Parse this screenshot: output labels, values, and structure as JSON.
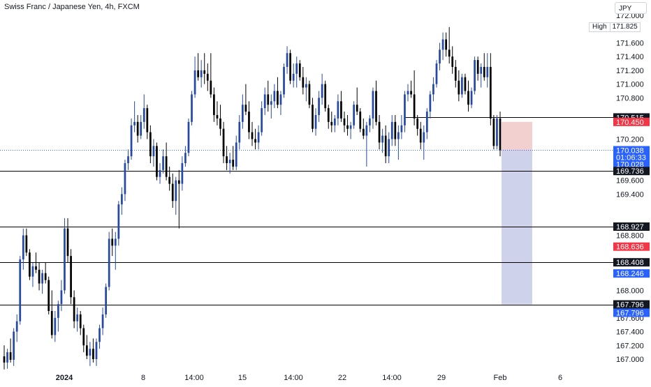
{
  "title": "Swiss Franc / Japanese Yen, 4h, FXCM",
  "currency": "JPY",
  "high_marker": {
    "label": "High",
    "value": "171.825"
  },
  "colors": {
    "bull": "#2449a8",
    "bear": "#000000",
    "stop_zone": "#f0c8c8",
    "target_zone": "#c5cbe8",
    "blue_tag": "#2962ff",
    "red_tag": "#f23645",
    "dark_tag": "#131722",
    "grid_text": "#131722"
  },
  "chart_data": {
    "type": "candlestick",
    "price_axis": {
      "ticks": [
        "172.000",
        "171.600",
        "171.400",
        "171.200",
        "171.000",
        "170.800",
        "170.200",
        "169.600",
        "169.400",
        "168.800",
        "168.000",
        "167.600",
        "167.400",
        "167.200",
        "167.000"
      ],
      "ylim": [
        166.9,
        172.0
      ]
    },
    "time_axis": {
      "labels": [
        "2024",
        "8",
        "14:00",
        "15",
        "14:00",
        "22",
        "14:00",
        "29",
        "Feb",
        "6"
      ]
    },
    "horizontal_levels": [
      "170.515",
      "169.736",
      "168.927",
      "168.408",
      "167.796"
    ],
    "price_tags": [
      {
        "value": "170.515",
        "style": "dark"
      },
      {
        "value": "170.450",
        "style": "red"
      },
      {
        "value": "170.038",
        "style": "blue"
      },
      {
        "value": "01:06:33",
        "style": "blue"
      },
      {
        "value": "170.028",
        "style": "blue"
      },
      {
        "value": "169.736",
        "style": "dark"
      },
      {
        "value": "168.927",
        "style": "dark"
      },
      {
        "value": "168.636",
        "style": "red"
      },
      {
        "value": "168.408",
        "style": "dark"
      },
      {
        "value": "168.246",
        "style": "blue"
      },
      {
        "value": "167.796",
        "style": "dark"
      },
      {
        "value": "167.796",
        "style": "blue"
      }
    ],
    "position": {
      "type": "short",
      "entry": 170.038,
      "stop": 170.45,
      "target": 167.796
    },
    "series": [
      {
        "o": 167.04,
        "h": 167.2,
        "l": 166.85,
        "c": 166.95
      },
      {
        "o": 166.95,
        "h": 167.15,
        "l": 166.86,
        "c": 167.1
      },
      {
        "o": 167.1,
        "h": 167.3,
        "l": 166.95,
        "c": 166.99
      },
      {
        "o": 166.99,
        "h": 167.45,
        "l": 166.9,
        "c": 167.4
      },
      {
        "o": 167.4,
        "h": 167.65,
        "l": 167.25,
        "c": 167.55
      },
      {
        "o": 167.55,
        "h": 168.5,
        "l": 167.5,
        "c": 168.45
      },
      {
        "o": 168.45,
        "h": 168.9,
        "l": 168.3,
        "c": 168.8
      },
      {
        "o": 168.8,
        "h": 168.9,
        "l": 168.5,
        "c": 168.55
      },
      {
        "o": 168.55,
        "h": 168.6,
        "l": 168.15,
        "c": 168.2
      },
      {
        "o": 168.2,
        "h": 168.4,
        "l": 168.05,
        "c": 168.35
      },
      {
        "o": 168.35,
        "h": 168.55,
        "l": 168.25,
        "c": 168.3
      },
      {
        "o": 168.3,
        "h": 168.4,
        "l": 168.0,
        "c": 168.1
      },
      {
        "o": 168.1,
        "h": 168.3,
        "l": 167.95,
        "c": 168.25
      },
      {
        "o": 168.25,
        "h": 168.4,
        "l": 168.1,
        "c": 168.15
      },
      {
        "o": 168.15,
        "h": 168.2,
        "l": 167.65,
        "c": 167.7
      },
      {
        "o": 167.7,
        "h": 168.0,
        "l": 167.3,
        "c": 167.35
      },
      {
        "o": 167.35,
        "h": 167.7,
        "l": 167.25,
        "c": 167.6
      },
      {
        "o": 167.6,
        "h": 167.85,
        "l": 167.4,
        "c": 167.8
      },
      {
        "o": 167.8,
        "h": 168.15,
        "l": 167.7,
        "c": 168.0
      },
      {
        "o": 168.0,
        "h": 169.05,
        "l": 167.95,
        "c": 168.9
      },
      {
        "o": 168.9,
        "h": 169.05,
        "l": 168.4,
        "c": 168.5
      },
      {
        "o": 168.5,
        "h": 168.6,
        "l": 167.8,
        "c": 167.9
      },
      {
        "o": 167.9,
        "h": 168.0,
        "l": 167.45,
        "c": 167.55
      },
      {
        "o": 167.55,
        "h": 167.75,
        "l": 167.4,
        "c": 167.65
      },
      {
        "o": 167.65,
        "h": 167.7,
        "l": 167.35,
        "c": 167.45
      },
      {
        "o": 167.45,
        "h": 167.5,
        "l": 167.1,
        "c": 167.2
      },
      {
        "o": 167.2,
        "h": 167.35,
        "l": 167.0,
        "c": 167.05
      },
      {
        "o": 167.05,
        "h": 167.25,
        "l": 166.9,
        "c": 167.15
      },
      {
        "o": 167.15,
        "h": 167.3,
        "l": 166.95,
        "c": 167.0
      },
      {
        "o": 167.0,
        "h": 167.3,
        "l": 166.9,
        "c": 167.25
      },
      {
        "o": 167.25,
        "h": 167.5,
        "l": 167.15,
        "c": 167.45
      },
      {
        "o": 167.45,
        "h": 167.75,
        "l": 167.35,
        "c": 167.65
      },
      {
        "o": 167.65,
        "h": 168.1,
        "l": 167.6,
        "c": 168.05
      },
      {
        "o": 168.05,
        "h": 168.85,
        "l": 168.0,
        "c": 168.75
      },
      {
        "o": 168.75,
        "h": 168.9,
        "l": 168.5,
        "c": 168.65
      },
      {
        "o": 168.65,
        "h": 168.85,
        "l": 168.3,
        "c": 168.75
      },
      {
        "o": 168.75,
        "h": 169.3,
        "l": 168.65,
        "c": 169.25
      },
      {
        "o": 169.25,
        "h": 169.5,
        "l": 169.1,
        "c": 169.4
      },
      {
        "o": 169.4,
        "h": 169.9,
        "l": 169.3,
        "c": 169.85
      },
      {
        "o": 169.85,
        "h": 170.05,
        "l": 169.75,
        "c": 169.95
      },
      {
        "o": 169.95,
        "h": 170.5,
        "l": 169.9,
        "c": 170.4
      },
      {
        "o": 170.4,
        "h": 170.75,
        "l": 170.3,
        "c": 170.45
      },
      {
        "o": 170.45,
        "h": 170.55,
        "l": 170.15,
        "c": 170.25
      },
      {
        "o": 170.25,
        "h": 170.55,
        "l": 170.2,
        "c": 170.45
      },
      {
        "o": 170.45,
        "h": 170.85,
        "l": 170.35,
        "c": 170.65
      },
      {
        "o": 170.65,
        "h": 170.7,
        "l": 170.2,
        "c": 170.3
      },
      {
        "o": 170.3,
        "h": 170.4,
        "l": 169.85,
        "c": 169.95
      },
      {
        "o": 169.95,
        "h": 170.2,
        "l": 169.8,
        "c": 170.1
      },
      {
        "o": 170.1,
        "h": 170.15,
        "l": 169.6,
        "c": 169.65
      },
      {
        "o": 169.65,
        "h": 169.85,
        "l": 169.55,
        "c": 169.75
      },
      {
        "o": 169.75,
        "h": 170.05,
        "l": 169.7,
        "c": 169.95
      },
      {
        "o": 169.95,
        "h": 170.15,
        "l": 169.6,
        "c": 169.65
      },
      {
        "o": 169.65,
        "h": 169.8,
        "l": 169.45,
        "c": 169.55
      },
      {
        "o": 169.55,
        "h": 169.7,
        "l": 169.2,
        "c": 169.3
      },
      {
        "o": 169.3,
        "h": 169.65,
        "l": 169.1,
        "c": 169.6
      },
      {
        "o": 169.6,
        "h": 169.75,
        "l": 168.9,
        "c": 169.55
      },
      {
        "o": 169.55,
        "h": 169.95,
        "l": 169.45,
        "c": 169.85
      },
      {
        "o": 169.85,
        "h": 170.1,
        "l": 169.8,
        "c": 170.0
      },
      {
        "o": 170.0,
        "h": 170.5,
        "l": 169.95,
        "c": 170.45
      },
      {
        "o": 170.45,
        "h": 170.9,
        "l": 170.4,
        "c": 170.85
      },
      {
        "o": 170.85,
        "h": 171.4,
        "l": 170.8,
        "c": 171.2
      },
      {
        "o": 171.2,
        "h": 171.45,
        "l": 171.05,
        "c": 171.1
      },
      {
        "o": 171.1,
        "h": 171.35,
        "l": 170.95,
        "c": 171.2
      },
      {
        "o": 171.2,
        "h": 171.45,
        "l": 171.0,
        "c": 171.15
      },
      {
        "o": 171.15,
        "h": 171.3,
        "l": 170.9,
        "c": 171.05
      },
      {
        "o": 171.05,
        "h": 171.45,
        "l": 170.8,
        "c": 170.85
      },
      {
        "o": 170.85,
        "h": 170.95,
        "l": 170.45,
        "c": 170.55
      },
      {
        "o": 170.55,
        "h": 170.75,
        "l": 170.4,
        "c": 170.5
      },
      {
        "o": 170.5,
        "h": 170.7,
        "l": 170.25,
        "c": 170.35
      },
      {
        "o": 170.35,
        "h": 170.45,
        "l": 169.85,
        "c": 169.95
      },
      {
        "o": 169.95,
        "h": 170.1,
        "l": 169.75,
        "c": 169.85
      },
      {
        "o": 169.85,
        "h": 170.0,
        "l": 169.7,
        "c": 169.9
      },
      {
        "o": 169.9,
        "h": 170.1,
        "l": 169.75,
        "c": 169.8
      },
      {
        "o": 169.8,
        "h": 170.25,
        "l": 169.75,
        "c": 170.15
      },
      {
        "o": 170.15,
        "h": 170.55,
        "l": 170.05,
        "c": 170.45
      },
      {
        "o": 170.45,
        "h": 170.85,
        "l": 170.35,
        "c": 170.7
      },
      {
        "o": 170.7,
        "h": 171.0,
        "l": 170.55,
        "c": 170.6
      },
      {
        "o": 170.6,
        "h": 170.75,
        "l": 170.2,
        "c": 170.3
      },
      {
        "o": 170.3,
        "h": 170.45,
        "l": 170.1,
        "c": 170.2
      },
      {
        "o": 170.2,
        "h": 170.35,
        "l": 170.05,
        "c": 170.15
      },
      {
        "o": 170.15,
        "h": 170.4,
        "l": 170.05,
        "c": 170.3
      },
      {
        "o": 170.3,
        "h": 170.75,
        "l": 170.25,
        "c": 170.65
      },
      {
        "o": 170.65,
        "h": 170.95,
        "l": 170.55,
        "c": 170.85
      },
      {
        "o": 170.85,
        "h": 171.05,
        "l": 170.6,
        "c": 170.7
      },
      {
        "o": 170.7,
        "h": 170.85,
        "l": 170.5,
        "c": 170.75
      },
      {
        "o": 170.75,
        "h": 171.0,
        "l": 170.65,
        "c": 170.9
      },
      {
        "o": 170.9,
        "h": 171.1,
        "l": 170.65,
        "c": 170.7
      },
      {
        "o": 170.7,
        "h": 170.9,
        "l": 170.55,
        "c": 170.85
      },
      {
        "o": 170.85,
        "h": 171.3,
        "l": 170.8,
        "c": 171.25
      },
      {
        "o": 171.25,
        "h": 171.55,
        "l": 171.15,
        "c": 171.45
      },
      {
        "o": 171.45,
        "h": 171.5,
        "l": 171.0,
        "c": 171.05
      },
      {
        "o": 171.05,
        "h": 171.3,
        "l": 170.95,
        "c": 171.15
      },
      {
        "o": 171.15,
        "h": 171.4,
        "l": 170.95,
        "c": 171.3
      },
      {
        "o": 171.3,
        "h": 171.35,
        "l": 171.05,
        "c": 171.1
      },
      {
        "o": 171.1,
        "h": 171.25,
        "l": 170.85,
        "c": 170.95
      },
      {
        "o": 170.95,
        "h": 171.1,
        "l": 170.75,
        "c": 171.0
      },
      {
        "o": 171.0,
        "h": 171.05,
        "l": 170.65,
        "c": 170.7
      },
      {
        "o": 170.7,
        "h": 170.8,
        "l": 170.3,
        "c": 170.35
      },
      {
        "o": 170.35,
        "h": 170.65,
        "l": 170.25,
        "c": 170.55
      },
      {
        "o": 170.55,
        "h": 170.9,
        "l": 170.45,
        "c": 170.8
      },
      {
        "o": 170.8,
        "h": 171.15,
        "l": 170.7,
        "c": 171.0
      },
      {
        "o": 171.0,
        "h": 171.05,
        "l": 170.6,
        "c": 170.65
      },
      {
        "o": 170.65,
        "h": 170.7,
        "l": 170.35,
        "c": 170.45
      },
      {
        "o": 170.45,
        "h": 170.6,
        "l": 170.3,
        "c": 170.4
      },
      {
        "o": 170.4,
        "h": 170.55,
        "l": 170.3,
        "c": 170.5
      },
      {
        "o": 170.5,
        "h": 170.85,
        "l": 170.4,
        "c": 170.75
      },
      {
        "o": 170.75,
        "h": 170.9,
        "l": 170.45,
        "c": 170.5
      },
      {
        "o": 170.5,
        "h": 170.6,
        "l": 170.3,
        "c": 170.4
      },
      {
        "o": 170.4,
        "h": 170.55,
        "l": 170.25,
        "c": 170.35
      },
      {
        "o": 170.35,
        "h": 170.45,
        "l": 170.2,
        "c": 170.4
      },
      {
        "o": 170.4,
        "h": 170.75,
        "l": 170.35,
        "c": 170.7
      },
      {
        "o": 170.7,
        "h": 170.95,
        "l": 170.55,
        "c": 170.6
      },
      {
        "o": 170.6,
        "h": 170.65,
        "l": 170.3,
        "c": 170.35
      },
      {
        "o": 170.35,
        "h": 170.5,
        "l": 170.2,
        "c": 170.25
      },
      {
        "o": 170.25,
        "h": 170.45,
        "l": 169.8,
        "c": 170.4
      },
      {
        "o": 170.4,
        "h": 170.55,
        "l": 170.3,
        "c": 170.5
      },
      {
        "o": 170.5,
        "h": 170.95,
        "l": 170.35,
        "c": 170.9
      },
      {
        "o": 170.9,
        "h": 171.05,
        "l": 170.4,
        "c": 170.45
      },
      {
        "o": 170.45,
        "h": 170.55,
        "l": 170.05,
        "c": 170.15
      },
      {
        "o": 170.15,
        "h": 170.35,
        "l": 170.0,
        "c": 170.25
      },
      {
        "o": 170.25,
        "h": 170.4,
        "l": 169.85,
        "c": 169.95
      },
      {
        "o": 169.95,
        "h": 170.3,
        "l": 169.85,
        "c": 170.2
      },
      {
        "o": 170.2,
        "h": 170.55,
        "l": 170.1,
        "c": 170.45
      },
      {
        "o": 170.45,
        "h": 170.55,
        "l": 170.1,
        "c": 170.2
      },
      {
        "o": 170.2,
        "h": 170.4,
        "l": 169.9,
        "c": 170.3
      },
      {
        "o": 170.3,
        "h": 170.55,
        "l": 170.2,
        "c": 170.4
      },
      {
        "o": 170.4,
        "h": 170.9,
        "l": 170.3,
        "c": 170.85
      },
      {
        "o": 170.85,
        "h": 171.0,
        "l": 170.75,
        "c": 170.9
      },
      {
        "o": 170.9,
        "h": 171.05,
        "l": 170.8,
        "c": 170.85
      },
      {
        "o": 170.85,
        "h": 171.2,
        "l": 170.4,
        "c": 170.5
      },
      {
        "o": 170.5,
        "h": 170.55,
        "l": 170.25,
        "c": 170.35
      },
      {
        "o": 170.35,
        "h": 170.45,
        "l": 170.05,
        "c": 170.15
      },
      {
        "o": 170.15,
        "h": 170.4,
        "l": 169.9,
        "c": 170.3
      },
      {
        "o": 170.3,
        "h": 170.65,
        "l": 170.2,
        "c": 170.6
      },
      {
        "o": 170.6,
        "h": 170.9,
        "l": 170.5,
        "c": 170.85
      },
      {
        "o": 170.85,
        "h": 171.1,
        "l": 170.75,
        "c": 171.0
      },
      {
        "o": 171.0,
        "h": 171.35,
        "l": 170.95,
        "c": 171.3
      },
      {
        "o": 171.3,
        "h": 171.6,
        "l": 171.2,
        "c": 171.5
      },
      {
        "o": 171.5,
        "h": 171.75,
        "l": 171.35,
        "c": 171.65
      },
      {
        "o": 171.65,
        "h": 171.75,
        "l": 171.4,
        "c": 171.5
      },
      {
        "o": 171.5,
        "h": 171.83,
        "l": 171.3,
        "c": 171.4
      },
      {
        "o": 171.4,
        "h": 171.55,
        "l": 171.15,
        "c": 171.25
      },
      {
        "o": 171.25,
        "h": 171.35,
        "l": 170.95,
        "c": 171.05
      },
      {
        "o": 171.05,
        "h": 171.2,
        "l": 170.75,
        "c": 170.85
      },
      {
        "o": 170.85,
        "h": 171.15,
        "l": 170.8,
        "c": 171.1
      },
      {
        "o": 171.1,
        "h": 171.15,
        "l": 170.85,
        "c": 170.9
      },
      {
        "o": 170.9,
        "h": 171.05,
        "l": 170.6,
        "c": 170.7
      },
      {
        "o": 170.7,
        "h": 170.95,
        "l": 170.65,
        "c": 170.9
      },
      {
        "o": 170.9,
        "h": 171.4,
        "l": 170.85,
        "c": 171.35
      },
      {
        "o": 171.35,
        "h": 171.4,
        "l": 171.05,
        "c": 171.15
      },
      {
        "o": 171.15,
        "h": 171.3,
        "l": 170.95,
        "c": 171.25
      },
      {
        "o": 171.25,
        "h": 171.45,
        "l": 171.05,
        "c": 171.1
      },
      {
        "o": 171.1,
        "h": 171.45,
        "l": 170.95,
        "c": 171.25
      },
      {
        "o": 171.25,
        "h": 171.45,
        "l": 170.4,
        "c": 170.5
      },
      {
        "o": 170.5,
        "h": 170.55,
        "l": 170.05,
        "c": 170.1
      },
      {
        "o": 170.1,
        "h": 170.55,
        "l": 170.05,
        "c": 170.5
      },
      {
        "o": 170.5,
        "h": 170.6,
        "l": 169.95,
        "c": 170.04
      }
    ]
  }
}
